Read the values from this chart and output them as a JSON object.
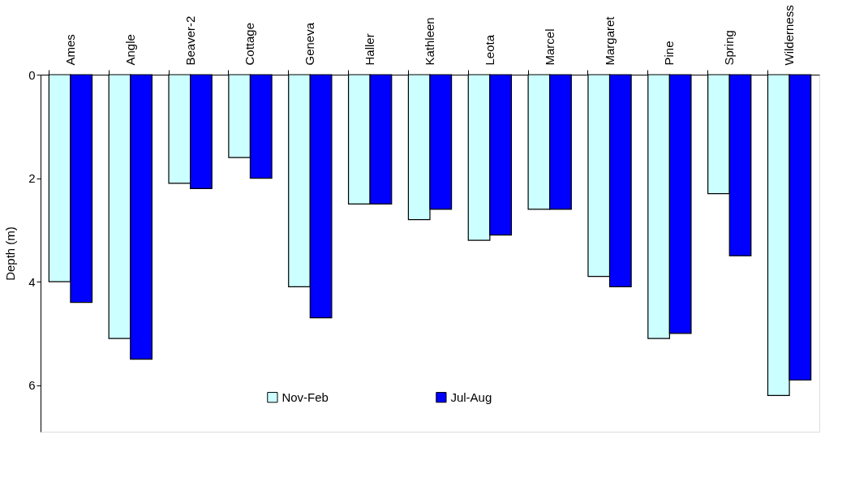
{
  "chart_data": {
    "type": "bar",
    "ylabel": "Depth (m)",
    "categories": [
      "Ames",
      "Angle",
      "Beaver-2",
      "Cottage",
      "Geneva",
      "Haller",
      "Kathleen",
      "Leota",
      "Marcel",
      "Margaret",
      "Pine",
      "Spring",
      "Wilderness"
    ],
    "series": [
      {
        "name": "Nov-Feb",
        "color": "#ccffff",
        "values": [
          4.0,
          5.1,
          2.1,
          1.6,
          4.1,
          2.5,
          2.8,
          3.2,
          2.6,
          3.9,
          5.1,
          2.3,
          6.2
        ]
      },
      {
        "name": "Jul-Aug",
        "color": "#0000ff",
        "values": [
          4.4,
          5.5,
          2.2,
          2.0,
          4.7,
          2.5,
          2.6,
          3.1,
          2.6,
          4.1,
          5.0,
          3.5,
          5.9
        ]
      }
    ],
    "ylim": [
      6.9,
      0
    ],
    "yticks": [
      0,
      2,
      4,
      6
    ],
    "grid": false,
    "legend": "bottom"
  }
}
